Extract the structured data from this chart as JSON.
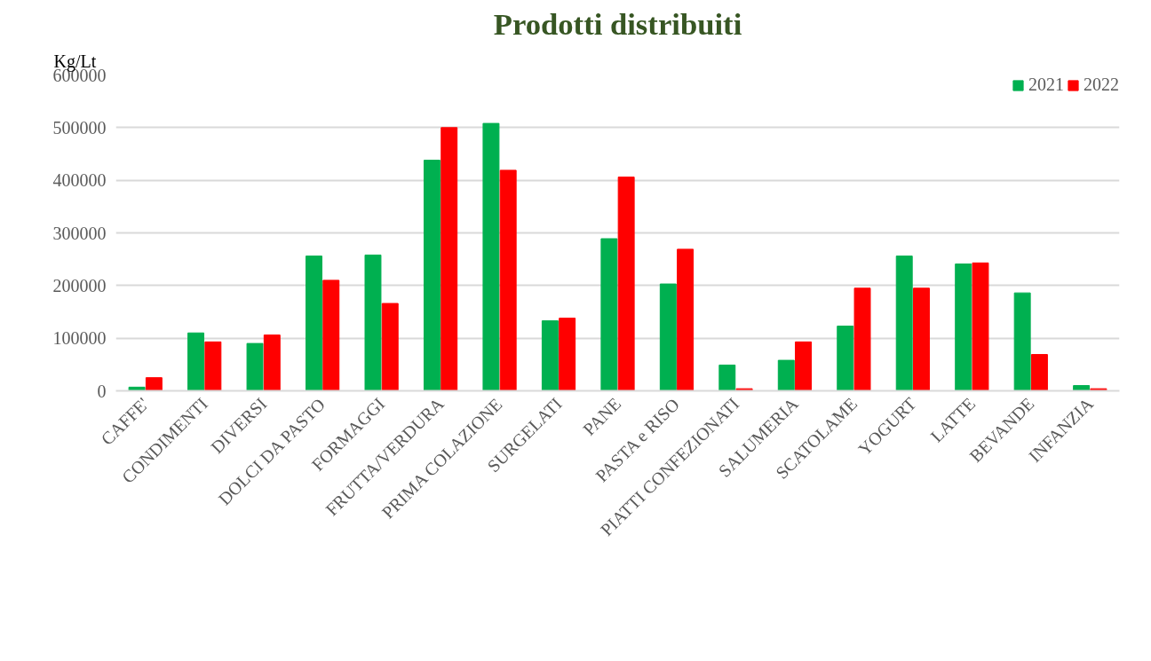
{
  "chart_data": {
    "type": "bar",
    "title": "Prodotti distribuiti",
    "ylabel": "Kg/Lt",
    "categories": [
      "CAFFE'",
      "CONDIMENTI",
      "DIVERSI",
      "DOLCI DA PASTO",
      "FORMAGGI",
      "FRUTTA/VERDURA",
      "PRIMA COLAZIONE",
      "SURGELATI",
      "PANE",
      "PASTA e RISO",
      "PIATTI CONFEZIONATI",
      "SALUMERIA",
      "SCATOLAME",
      "YOGURT",
      "LATTE",
      "BEVANDE",
      "INFANZIA"
    ],
    "series": [
      {
        "name": "2021",
        "color": "#00b050",
        "values": [
          7000,
          110000,
          90000,
          256000,
          258000,
          438000,
          508000,
          133000,
          289000,
          203000,
          49000,
          58000,
          123000,
          256000,
          241000,
          186000,
          10000
        ]
      },
      {
        "name": "2022",
        "color": "#ff0000",
        "values": [
          25000,
          93000,
          106000,
          210000,
          166000,
          500000,
          419000,
          138000,
          406000,
          269000,
          4000,
          93000,
          195000,
          195000,
          243000,
          69000,
          4000
        ]
      }
    ],
    "ylim": [
      0,
      600000
    ],
    "yticks": [
      0,
      100000,
      200000,
      300000,
      400000,
      500000,
      600000
    ],
    "grid": "y",
    "legend": "top right"
  }
}
